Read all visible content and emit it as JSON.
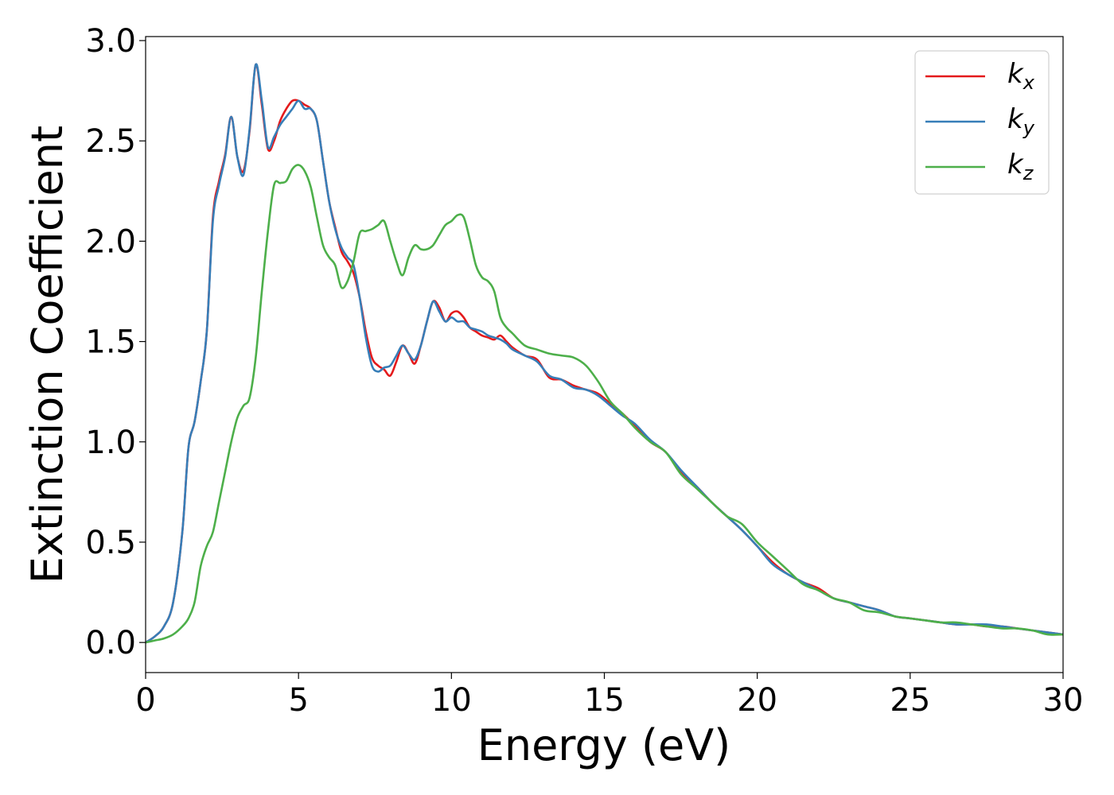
{
  "chart_data": {
    "type": "line",
    "xlabel": "Energy (eV)",
    "ylabel": "Extinction Coefficient",
    "xlim": [
      0,
      30
    ],
    "ylim": [
      -0.15,
      3.02
    ],
    "xticks": [
      0,
      5,
      10,
      15,
      20,
      25,
      30
    ],
    "xtick_labels": [
      "0",
      "5",
      "10",
      "15",
      "20",
      "25",
      "30"
    ],
    "yticks": [
      0.0,
      0.5,
      1.0,
      1.5,
      2.0,
      2.5,
      3.0
    ],
    "ytick_labels": [
      "0.0",
      "0.5",
      "1.0",
      "1.5",
      "2.0",
      "2.5",
      "3.0"
    ],
    "grid": false,
    "legend_position": "top-right",
    "series": [
      {
        "name": "k_x",
        "label_base": "k",
        "label_sub": "x",
        "color": "#e41a1c",
        "x": [
          0,
          0.3,
          0.6,
          0.9,
          1.2,
          1.4,
          1.6,
          1.8,
          2.0,
          2.2,
          2.4,
          2.6,
          2.8,
          3.0,
          3.2,
          3.4,
          3.6,
          3.8,
          4.0,
          4.2,
          4.4,
          4.6,
          4.8,
          5.0,
          5.2,
          5.4,
          5.6,
          5.8,
          6.0,
          6.2,
          6.4,
          6.6,
          6.8,
          7.0,
          7.2,
          7.4,
          7.6,
          7.8,
          8.0,
          8.2,
          8.4,
          8.6,
          8.8,
          9.0,
          9.2,
          9.4,
          9.6,
          9.8,
          10.0,
          10.2,
          10.4,
          10.6,
          10.8,
          11.0,
          11.2,
          11.4,
          11.6,
          11.8,
          12.0,
          12.4,
          12.8,
          13.2,
          13.6,
          14.0,
          14.4,
          14.8,
          15.2,
          15.6,
          16.0,
          16.5,
          17.0,
          17.5,
          18.0,
          18.5,
          19.0,
          19.5,
          20.0,
          20.5,
          21.0,
          21.5,
          22.0,
          22.5,
          23.0,
          23.5,
          24.0,
          24.5,
          25.0,
          25.5,
          26.0,
          26.5,
          27.0,
          27.5,
          28.0,
          28.5,
          29.0,
          29.5,
          30.0
        ],
        "y": [
          0.0,
          0.03,
          0.08,
          0.2,
          0.55,
          0.97,
          1.1,
          1.3,
          1.55,
          2.12,
          2.3,
          2.43,
          2.62,
          2.42,
          2.35,
          2.55,
          2.88,
          2.68,
          2.46,
          2.5,
          2.6,
          2.66,
          2.7,
          2.7,
          2.68,
          2.66,
          2.6,
          2.4,
          2.2,
          2.07,
          1.95,
          1.9,
          1.84,
          1.72,
          1.55,
          1.42,
          1.38,
          1.36,
          1.33,
          1.4,
          1.48,
          1.44,
          1.39,
          1.48,
          1.6,
          1.7,
          1.67,
          1.6,
          1.64,
          1.65,
          1.62,
          1.57,
          1.55,
          1.53,
          1.52,
          1.51,
          1.53,
          1.5,
          1.47,
          1.43,
          1.41,
          1.32,
          1.31,
          1.28,
          1.26,
          1.24,
          1.19,
          1.14,
          1.08,
          1.0,
          0.95,
          0.85,
          0.78,
          0.7,
          0.63,
          0.56,
          0.48,
          0.4,
          0.34,
          0.3,
          0.27,
          0.22,
          0.2,
          0.18,
          0.16,
          0.13,
          0.12,
          0.11,
          0.1,
          0.09,
          0.09,
          0.08,
          0.08,
          0.07,
          0.06,
          0.05,
          0.04
        ]
      },
      {
        "name": "k_y",
        "label_base": "k",
        "label_sub": "y",
        "color": "#377eb8",
        "x": [
          0,
          0.3,
          0.6,
          0.9,
          1.2,
          1.4,
          1.6,
          1.8,
          2.0,
          2.2,
          2.4,
          2.6,
          2.8,
          3.0,
          3.2,
          3.4,
          3.6,
          3.8,
          4.0,
          4.2,
          4.4,
          4.6,
          4.8,
          5.0,
          5.2,
          5.4,
          5.6,
          5.8,
          6.0,
          6.2,
          6.4,
          6.6,
          6.8,
          7.0,
          7.2,
          7.4,
          7.6,
          7.8,
          8.0,
          8.2,
          8.4,
          8.6,
          8.8,
          9.0,
          9.2,
          9.4,
          9.6,
          9.8,
          10.0,
          10.2,
          10.4,
          10.6,
          10.8,
          11.0,
          11.2,
          11.4,
          11.6,
          11.8,
          12.0,
          12.4,
          12.8,
          13.2,
          13.6,
          14.0,
          14.4,
          14.8,
          15.2,
          15.6,
          16.0,
          16.5,
          17.0,
          17.5,
          18.0,
          18.5,
          19.0,
          19.5,
          20.0,
          20.5,
          21.0,
          21.5,
          22.0,
          22.5,
          23.0,
          23.5,
          24.0,
          24.5,
          25.0,
          25.5,
          26.0,
          26.5,
          27.0,
          27.5,
          28.0,
          28.5,
          29.0,
          29.5,
          30.0
        ],
        "y": [
          0.0,
          0.03,
          0.08,
          0.2,
          0.55,
          0.97,
          1.1,
          1.3,
          1.55,
          2.1,
          2.28,
          2.42,
          2.62,
          2.42,
          2.33,
          2.56,
          2.88,
          2.7,
          2.47,
          2.52,
          2.58,
          2.62,
          2.66,
          2.7,
          2.66,
          2.66,
          2.6,
          2.4,
          2.2,
          2.06,
          1.97,
          1.92,
          1.88,
          1.72,
          1.52,
          1.38,
          1.35,
          1.37,
          1.38,
          1.43,
          1.48,
          1.44,
          1.41,
          1.48,
          1.6,
          1.7,
          1.65,
          1.6,
          1.62,
          1.6,
          1.6,
          1.57,
          1.56,
          1.55,
          1.53,
          1.52,
          1.51,
          1.49,
          1.46,
          1.43,
          1.4,
          1.33,
          1.31,
          1.27,
          1.26,
          1.23,
          1.18,
          1.13,
          1.09,
          1.01,
          0.95,
          0.86,
          0.78,
          0.7,
          0.63,
          0.56,
          0.48,
          0.39,
          0.34,
          0.3,
          0.26,
          0.22,
          0.2,
          0.18,
          0.16,
          0.13,
          0.12,
          0.11,
          0.1,
          0.09,
          0.09,
          0.09,
          0.08,
          0.07,
          0.06,
          0.05,
          0.04
        ]
      },
      {
        "name": "k_z",
        "label_base": "k",
        "label_sub": "z",
        "color": "#4daf4a",
        "x": [
          0,
          0.3,
          0.6,
          0.9,
          1.2,
          1.4,
          1.6,
          1.8,
          2.0,
          2.2,
          2.4,
          2.6,
          2.8,
          3.0,
          3.2,
          3.4,
          3.6,
          3.8,
          4.0,
          4.2,
          4.4,
          4.6,
          4.8,
          5.0,
          5.2,
          5.4,
          5.6,
          5.8,
          6.0,
          6.2,
          6.4,
          6.6,
          6.8,
          7.0,
          7.2,
          7.4,
          7.6,
          7.8,
          8.0,
          8.2,
          8.4,
          8.6,
          8.8,
          9.0,
          9.2,
          9.4,
          9.6,
          9.8,
          10.0,
          10.2,
          10.4,
          10.6,
          10.8,
          11.0,
          11.2,
          11.4,
          11.6,
          11.8,
          12.0,
          12.4,
          12.8,
          13.2,
          13.6,
          14.0,
          14.4,
          14.8,
          15.2,
          15.6,
          16.0,
          16.5,
          17.0,
          17.5,
          18.0,
          18.5,
          19.0,
          19.5,
          20.0,
          20.5,
          21.0,
          21.5,
          22.0,
          22.5,
          23.0,
          23.5,
          24.0,
          24.5,
          25.0,
          25.5,
          26.0,
          26.5,
          27.0,
          27.5,
          28.0,
          28.5,
          29.0,
          29.5,
          30.0
        ],
        "y": [
          0.0,
          0.01,
          0.02,
          0.04,
          0.08,
          0.12,
          0.2,
          0.38,
          0.48,
          0.55,
          0.7,
          0.85,
          1.0,
          1.12,
          1.18,
          1.22,
          1.42,
          1.75,
          2.05,
          2.28,
          2.29,
          2.3,
          2.36,
          2.38,
          2.35,
          2.27,
          2.12,
          1.98,
          1.92,
          1.88,
          1.77,
          1.8,
          1.9,
          2.04,
          2.05,
          2.06,
          2.08,
          2.1,
          2.0,
          1.9,
          1.83,
          1.92,
          1.98,
          1.96,
          1.96,
          1.98,
          2.03,
          2.08,
          2.1,
          2.13,
          2.12,
          2.01,
          1.88,
          1.82,
          1.8,
          1.75,
          1.62,
          1.57,
          1.54,
          1.48,
          1.46,
          1.44,
          1.43,
          1.42,
          1.38,
          1.3,
          1.2,
          1.14,
          1.07,
          1.0,
          0.95,
          0.84,
          0.77,
          0.7,
          0.63,
          0.59,
          0.5,
          0.43,
          0.36,
          0.29,
          0.26,
          0.22,
          0.2,
          0.16,
          0.15,
          0.13,
          0.12,
          0.11,
          0.1,
          0.1,
          0.09,
          0.08,
          0.07,
          0.07,
          0.06,
          0.04,
          0.04
        ]
      }
    ]
  }
}
